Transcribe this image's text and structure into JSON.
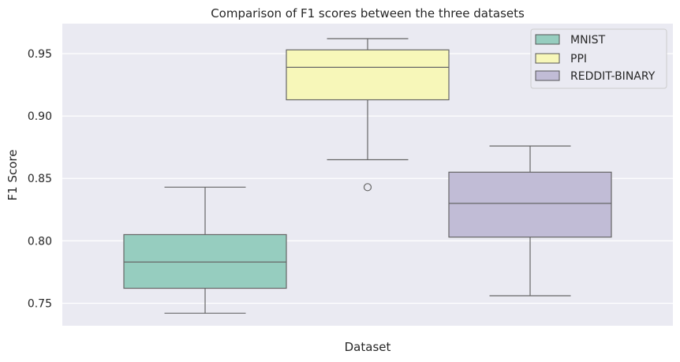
{
  "chart_data": {
    "type": "box",
    "title": "Comparison of F1 scores between the three datasets",
    "xlabel": "Dataset",
    "ylabel": "F1 Score",
    "ylim": [
      0.732,
      0.974
    ],
    "yticks": [
      "0.75",
      "0.80",
      "0.85",
      "0.90",
      "0.95"
    ],
    "grid": true,
    "legend_position": "top-right",
    "series": [
      {
        "name": "MNIST",
        "color": "#96cdbf",
        "whisker_low": 0.742,
        "q1": 0.762,
        "median": 0.783,
        "q3": 0.805,
        "whisker_high": 0.843,
        "outliers": []
      },
      {
        "name": "PPI",
        "color": "#f7f7b9",
        "whisker_low": 0.865,
        "q1": 0.913,
        "median": 0.939,
        "q3": 0.953,
        "whisker_high": 0.962,
        "outliers": [
          0.843
        ]
      },
      {
        "name": "REDDIT-BINARY",
        "color": "#c1bcd6",
        "whisker_low": 0.756,
        "q1": 0.803,
        "median": 0.83,
        "q3": 0.855,
        "whisker_high": 0.876,
        "outliers": []
      }
    ]
  }
}
